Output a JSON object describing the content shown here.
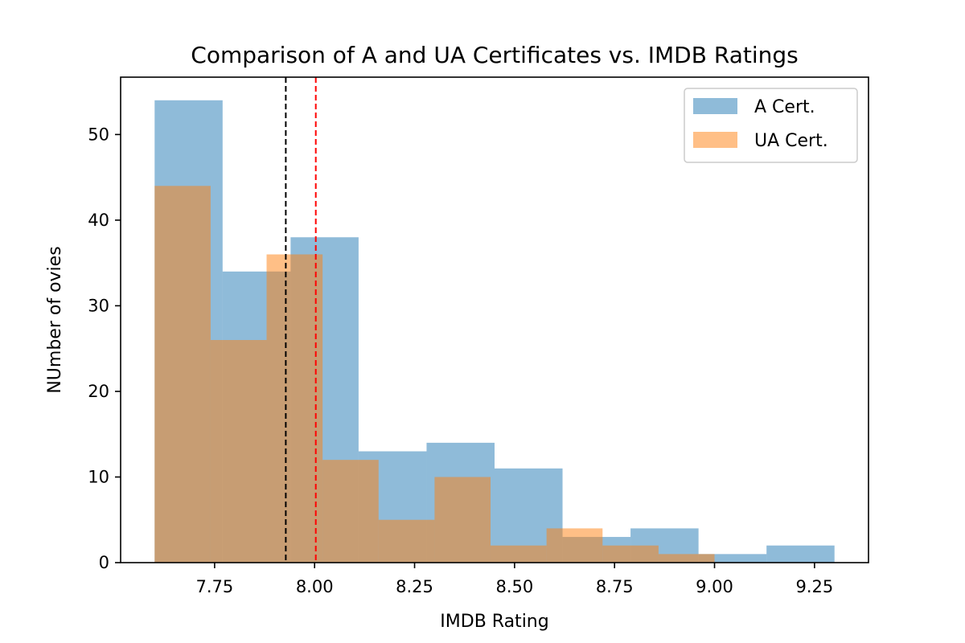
{
  "chart_data": {
    "type": "bar",
    "title": "Comparison of A and UA Certificates vs. IMDB Ratings",
    "xlabel": "IMDB Rating",
    "ylabel": "NUmber of ovies",
    "xlim": [
      7.515,
      9.385
    ],
    "ylim": [
      0,
      56.7
    ],
    "xticks": [
      7.75,
      8.0,
      8.25,
      8.5,
      8.75,
      9.0,
      9.25
    ],
    "xtick_labels": [
      "7.75",
      "8.00",
      "8.25",
      "8.50",
      "8.75",
      "9.00",
      "9.25"
    ],
    "yticks": [
      0,
      10,
      20,
      30,
      40,
      50
    ],
    "ytick_labels": [
      "0",
      "10",
      "20",
      "30",
      "40",
      "50"
    ],
    "grid": false,
    "legend_position": "top-right",
    "series": [
      {
        "name": "A Cert.",
        "color": "#1f77b4",
        "opacity": 0.5,
        "bins": [
          {
            "x0": 7.6,
            "x1": 7.77,
            "count": 54
          },
          {
            "x0": 7.77,
            "x1": 7.94,
            "count": 34
          },
          {
            "x0": 7.94,
            "x1": 8.11,
            "count": 38
          },
          {
            "x0": 8.11,
            "x1": 8.28,
            "count": 13
          },
          {
            "x0": 8.28,
            "x1": 8.45,
            "count": 14
          },
          {
            "x0": 8.45,
            "x1": 8.62,
            "count": 11
          },
          {
            "x0": 8.62,
            "x1": 8.79,
            "count": 3
          },
          {
            "x0": 8.79,
            "x1": 8.96,
            "count": 4
          },
          {
            "x0": 8.96,
            "x1": 9.13,
            "count": 1
          },
          {
            "x0": 9.13,
            "x1": 9.3,
            "count": 2
          }
        ]
      },
      {
        "name": "UA Cert.",
        "color": "#ff7f0e",
        "opacity": 0.5,
        "bins": [
          {
            "x0": 7.6,
            "x1": 7.74,
            "count": 44
          },
          {
            "x0": 7.74,
            "x1": 7.88,
            "count": 26
          },
          {
            "x0": 7.88,
            "x1": 8.02,
            "count": 36
          },
          {
            "x0": 8.02,
            "x1": 8.16,
            "count": 12
          },
          {
            "x0": 8.16,
            "x1": 8.3,
            "count": 5
          },
          {
            "x0": 8.3,
            "x1": 8.44,
            "count": 10
          },
          {
            "x0": 8.44,
            "x1": 8.58,
            "count": 2
          },
          {
            "x0": 8.58,
            "x1": 8.72,
            "count": 4
          },
          {
            "x0": 8.72,
            "x1": 8.86,
            "count": 2
          },
          {
            "x0": 8.86,
            "x1": 9.0,
            "count": 1
          }
        ]
      }
    ],
    "reference_lines": [
      {
        "x": 7.928,
        "color": "#000000",
        "style": "dashed"
      },
      {
        "x": 8.003,
        "color": "#ff0000",
        "style": "dashed"
      }
    ]
  }
}
